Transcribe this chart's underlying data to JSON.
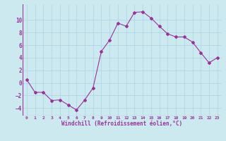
{
  "x": [
    0,
    1,
    2,
    3,
    4,
    5,
    6,
    7,
    8,
    9,
    10,
    11,
    12,
    13,
    14,
    15,
    16,
    17,
    18,
    19,
    20,
    21,
    22,
    23
  ],
  "y": [
    0.5,
    -1.5,
    -1.5,
    -2.8,
    -2.7,
    -3.5,
    -4.3,
    -2.7,
    -0.8,
    5.0,
    6.8,
    9.5,
    9.0,
    11.2,
    11.3,
    10.3,
    9.0,
    7.8,
    7.3,
    7.3,
    6.5,
    4.8,
    3.2,
    4.0
  ],
  "line_color": "#993399",
  "marker": "D",
  "markersize": 2.0,
  "linewidth": 0.8,
  "xlabel": "Windchill (Refroidissement éolien,°C)",
  "xlim": [
    -0.5,
    23.5
  ],
  "ylim": [
    -5.2,
    12.5
  ],
  "yticks": [
    -4,
    -2,
    0,
    2,
    4,
    6,
    8,
    10
  ],
  "xticks": [
    0,
    1,
    2,
    3,
    4,
    5,
    6,
    7,
    8,
    9,
    10,
    11,
    12,
    13,
    14,
    15,
    16,
    17,
    18,
    19,
    20,
    21,
    22,
    23
  ],
  "background_color": "#cce9f0",
  "grid_color": "#b0d8e8",
  "tick_color": "#993399",
  "label_color": "#993399",
  "font": "monospace"
}
